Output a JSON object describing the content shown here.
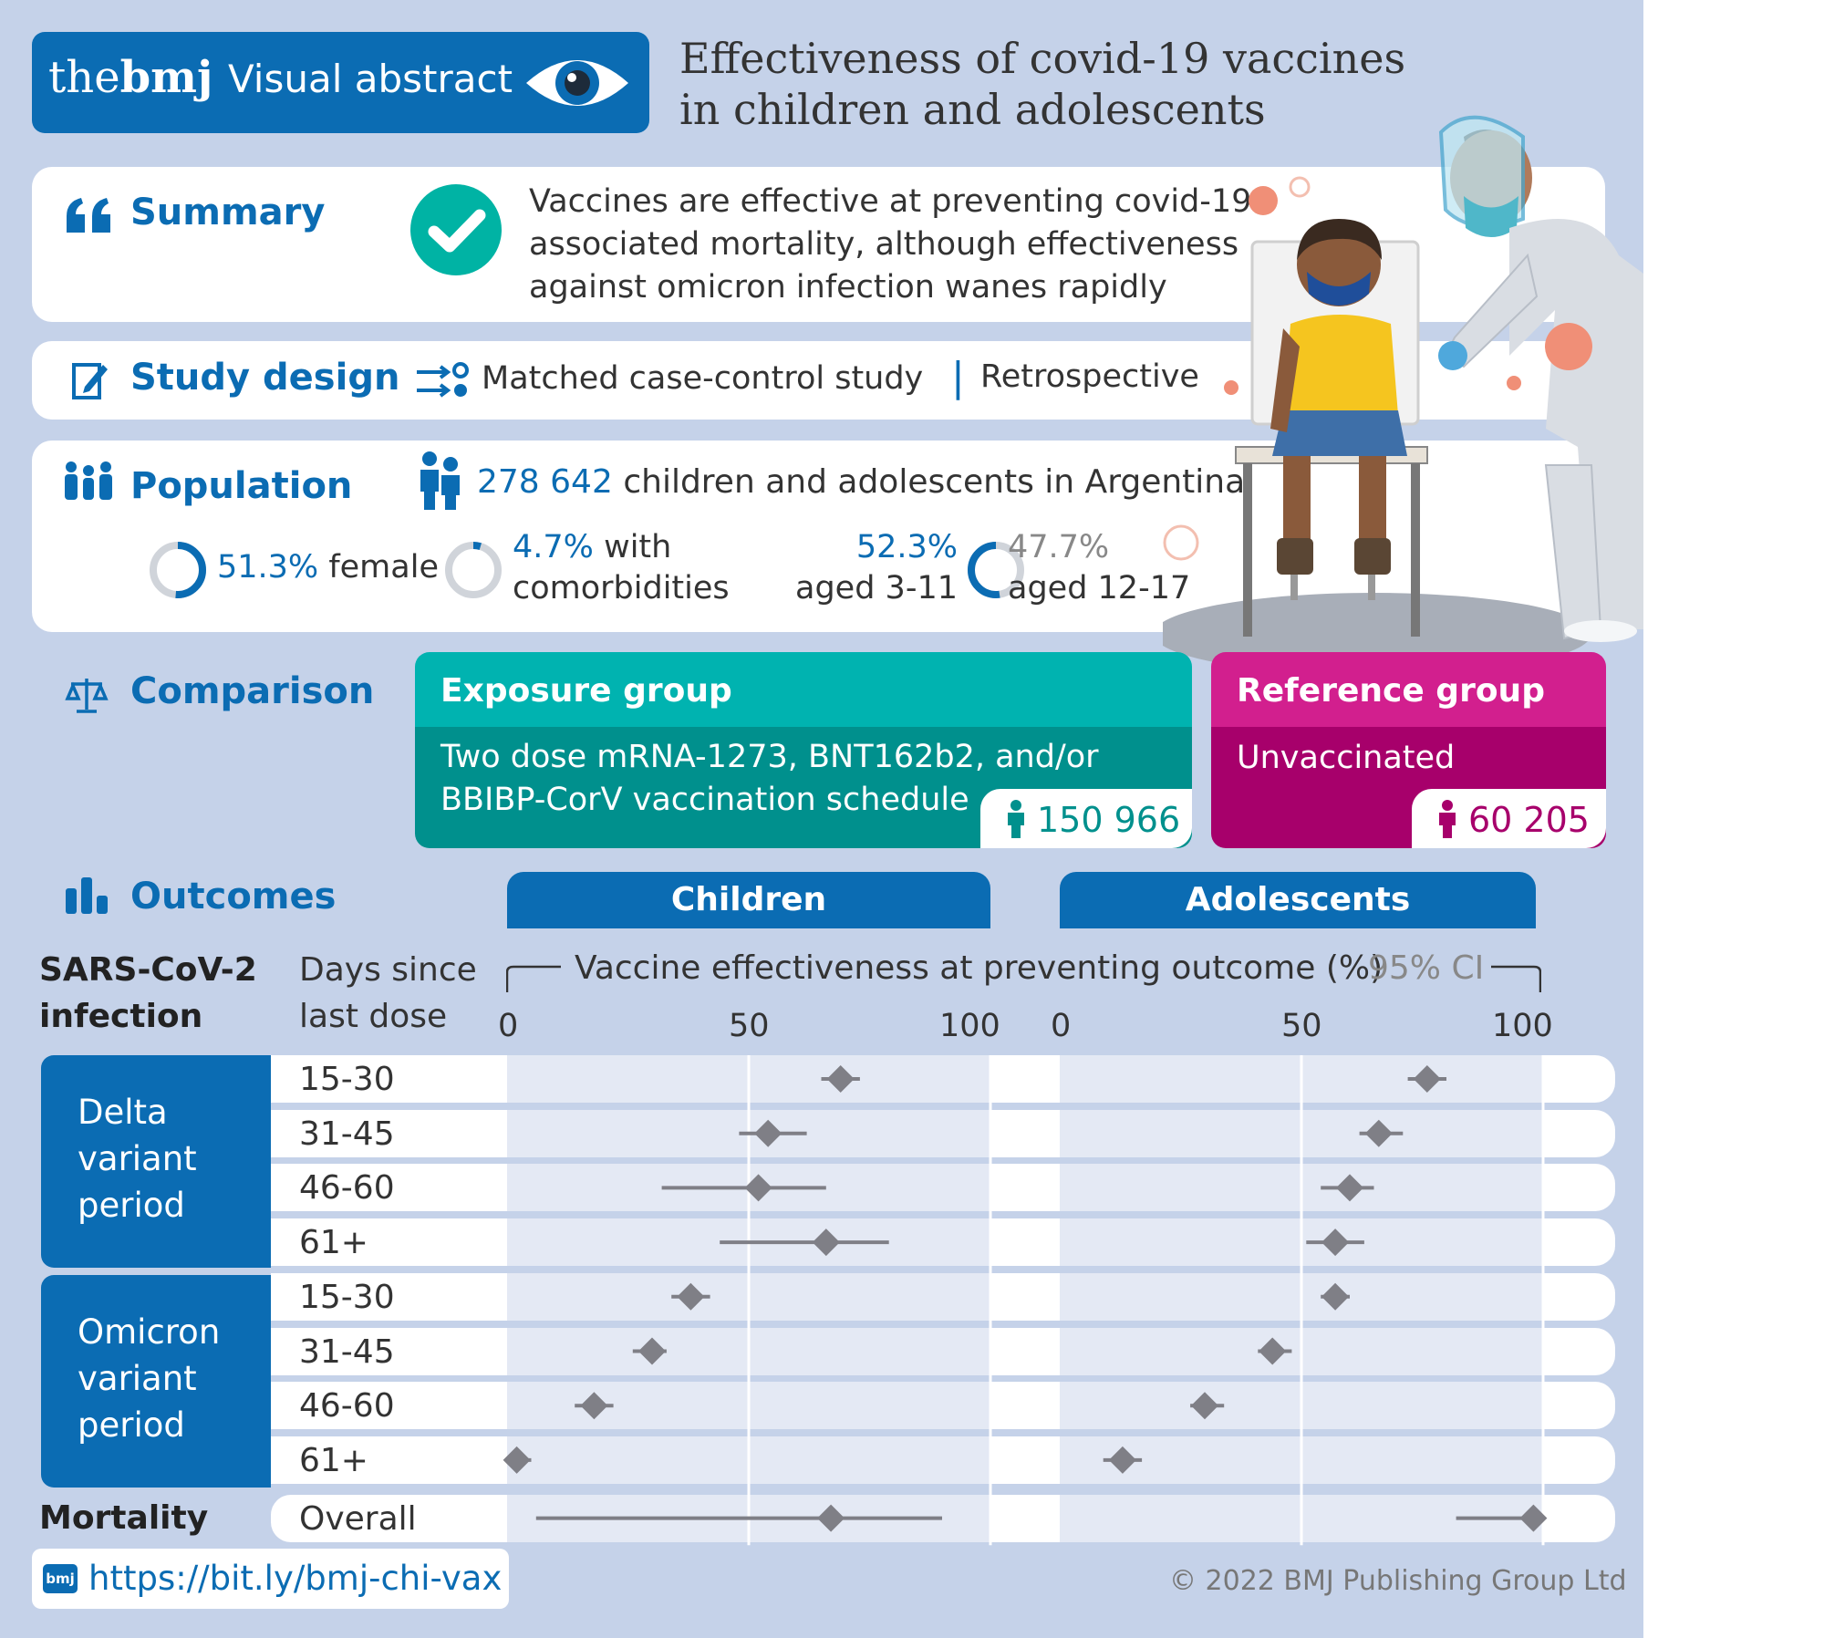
{
  "header": {
    "brand_the": "the",
    "brand_bmj": "bmj",
    "label": "Visual abstract",
    "title_line1": "Effectiveness of covid-19 vaccines",
    "title_line2": "in children and adolescents"
  },
  "summary": {
    "heading": "Summary",
    "line1": "Vaccines are effective at preventing covid-19",
    "line2": "associated mortality, although effectiveness",
    "line3": "against omicron infection wanes rapidly"
  },
  "study_design": {
    "heading": "Study design",
    "type": "Matched case-control study",
    "separator": "|",
    "timing": "Retrospective"
  },
  "population": {
    "heading": "Population",
    "count": "278 642",
    "description": "children and adolescents in Argentina",
    "female_pct": "51.3%",
    "female_label": "female",
    "female_fraction": 0.513,
    "comorb_pct": "4.7%",
    "comorb_label1": "with",
    "comorb_label2": "comorbidities",
    "comorb_fraction": 0.047,
    "age_young_pct": "52.3%",
    "age_young_label": "aged 3-11",
    "age_old_pct": "47.7%",
    "age_old_label": "aged 12-17",
    "age_young_fraction": 0.523
  },
  "comparison": {
    "heading": "Comparison",
    "exposure_title": "Exposure group",
    "exposure_line1": "Two dose mRNA-1273, BNT162b2, and/or",
    "exposure_line2": "BBIBP-CorV vaccination schedule",
    "exposure_n": "150 966",
    "reference_title": "Reference group",
    "reference_line1": "Unvaccinated",
    "reference_n": "60 205"
  },
  "outcomes": {
    "heading": "Outcomes",
    "tab_children": "Children",
    "tab_adolescents": "Adolescents",
    "row_heading1": "SARS-CoV-2",
    "row_heading2": "infection",
    "days_heading1": "Days since",
    "days_heading2": "last dose",
    "axis_title": "Vaccine effectiveness at preventing outcome (%)",
    "ci_label": "95% CI",
    "group_delta": [
      "Delta",
      "variant",
      "period"
    ],
    "group_omicron": [
      "Omicron",
      "variant",
      "period"
    ],
    "mortality_label": "Mortality"
  },
  "chart_data": {
    "type": "forest",
    "title": "Vaccine effectiveness at preventing outcome (%)",
    "xlim": [
      0,
      100
    ],
    "xticks": [
      "0",
      "50",
      "100"
    ],
    "panels": [
      "Children",
      "Adolescents"
    ],
    "rows": [
      {
        "group": "Delta variant period",
        "days": "15-30",
        "children": {
          "est": 69,
          "lo": 65,
          "hi": 73
        },
        "adolescents": {
          "est": 76,
          "lo": 72,
          "hi": 80
        }
      },
      {
        "group": "Delta variant period",
        "days": "31-45",
        "children": {
          "est": 54,
          "lo": 48,
          "hi": 62
        },
        "adolescents": {
          "est": 66,
          "lo": 62,
          "hi": 71
        }
      },
      {
        "group": "Delta variant period",
        "days": "46-60",
        "children": {
          "est": 52,
          "lo": 32,
          "hi": 66
        },
        "adolescents": {
          "est": 60,
          "lo": 54,
          "hi": 65
        }
      },
      {
        "group": "Delta variant period",
        "days": "61+",
        "children": {
          "est": 66,
          "lo": 44,
          "hi": 79
        },
        "adolescents": {
          "est": 57,
          "lo": 51,
          "hi": 63
        }
      },
      {
        "group": "Omicron variant period",
        "days": "15-30",
        "children": {
          "est": 38,
          "lo": 34,
          "hi": 42
        },
        "adolescents": {
          "est": 57,
          "lo": 54,
          "hi": 60
        }
      },
      {
        "group": "Omicron variant period",
        "days": "31-45",
        "children": {
          "est": 30,
          "lo": 26,
          "hi": 33
        },
        "adolescents": {
          "est": 44,
          "lo": 41,
          "hi": 48
        }
      },
      {
        "group": "Omicron variant period",
        "days": "46-60",
        "children": {
          "est": 18,
          "lo": 14,
          "hi": 22
        },
        "adolescents": {
          "est": 30,
          "lo": 27,
          "hi": 34
        }
      },
      {
        "group": "Omicron variant period",
        "days": "61+",
        "children": {
          "est": 2,
          "lo": -1,
          "hi": 5
        },
        "adolescents": {
          "est": 13,
          "lo": 9,
          "hi": 17
        }
      },
      {
        "group": "Mortality",
        "days": "Overall",
        "children": {
          "est": 67,
          "lo": 6,
          "hi": 90
        },
        "adolescents": {
          "est": 98,
          "lo": 82,
          "hi": 100
        }
      }
    ],
    "colors": {
      "marker": "#7f7f86",
      "panel_header": "#0b6cb3"
    }
  },
  "footer": {
    "logo": "bmj",
    "url": "https://bit.ly/bmj-chi-vax",
    "copyright": "© 2022 BMJ Publishing Group Ltd"
  },
  "colors": {
    "background": "#c5d2e9",
    "bmj_blue": "#0b6cb3",
    "teal": "#00b3b0",
    "teal_dark": "#00908d",
    "magenta": "#d21f8e",
    "magenta_dark": "#a7006b"
  },
  "icons": [
    "eye-icon",
    "quote-icon",
    "check-icon",
    "edit-icon",
    "flow-icon",
    "people-icon",
    "person-pair-icon",
    "scale-icon",
    "bar-chart-icon",
    "person-icon"
  ]
}
